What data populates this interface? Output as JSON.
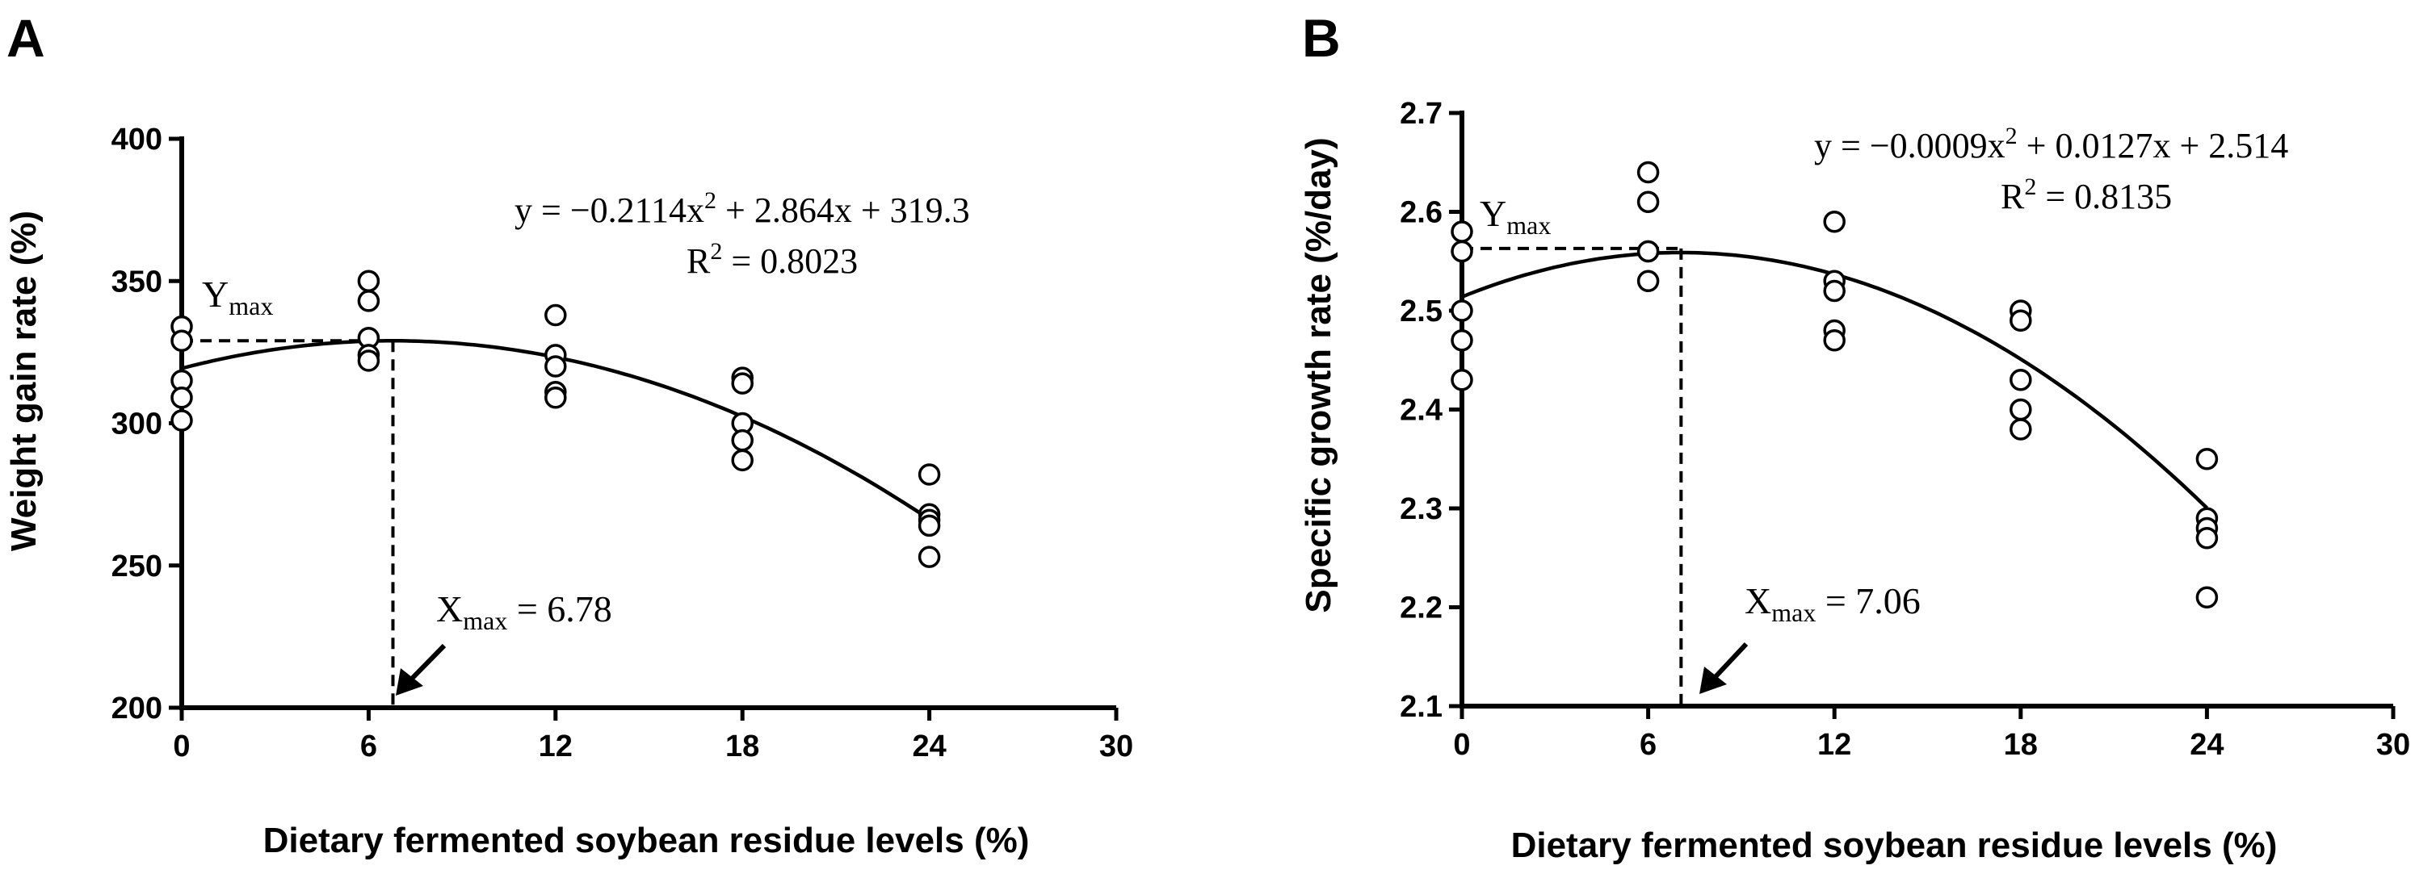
{
  "chart_data": [
    {
      "panel": "A",
      "type": "scatter",
      "xlabel": "Dietary fermented soybean residue levels (%)",
      "ylabel": "Weight gain rate (%)",
      "xlim": [
        0,
        30
      ],
      "ylim": [
        200,
        400
      ],
      "xticks": [
        "0",
        "6",
        "12",
        "18",
        "24",
        "30"
      ],
      "yticks": [
        "200",
        "250",
        "300",
        "350",
        "400"
      ],
      "points": [
        {
          "x": 0,
          "y": 334
        },
        {
          "x": 0,
          "y": 329
        },
        {
          "x": 0,
          "y": 315
        },
        {
          "x": 0,
          "y": 309
        },
        {
          "x": 0,
          "y": 301
        },
        {
          "x": 6,
          "y": 350
        },
        {
          "x": 6,
          "y": 343
        },
        {
          "x": 6,
          "y": 330
        },
        {
          "x": 6,
          "y": 324
        },
        {
          "x": 6,
          "y": 322
        },
        {
          "x": 12,
          "y": 338
        },
        {
          "x": 12,
          "y": 324
        },
        {
          "x": 12,
          "y": 320
        },
        {
          "x": 12,
          "y": 311
        },
        {
          "x": 12,
          "y": 309
        },
        {
          "x": 18,
          "y": 316
        },
        {
          "x": 18,
          "y": 314
        },
        {
          "x": 18,
          "y": 300
        },
        {
          "x": 18,
          "y": 294
        },
        {
          "x": 18,
          "y": 287
        },
        {
          "x": 24,
          "y": 282
        },
        {
          "x": 24,
          "y": 268
        },
        {
          "x": 24,
          "y": 266
        },
        {
          "x": 24,
          "y": 264
        },
        {
          "x": 24,
          "y": 253
        }
      ],
      "fit": {
        "a": -0.2114,
        "b": 2.864,
        "c": 319.3,
        "x_range": [
          0,
          24
        ]
      },
      "equation_lhs": "y = −0.2114x",
      "equation_sup": "2",
      "equation_rhs": " + 2.864x + 319.3",
      "r2_lhs": "R",
      "r2_sup": "2",
      "r2_rhs": " = 0.8023",
      "ymax_label": "Y",
      "ymax_sub": "max",
      "ymax_value": 329,
      "xmax_label": "X",
      "xmax_sub": "max",
      "xmax_value_text": " = 6.78",
      "xmax_value": 6.78
    },
    {
      "panel": "B",
      "type": "scatter",
      "xlabel": "Dietary fermented soybean residue levels (%)",
      "ylabel": "Specific growth rate (%/day)",
      "xlim": [
        0,
        30
      ],
      "ylim": [
        2.1,
        2.7
      ],
      "xticks": [
        "0",
        "6",
        "12",
        "18",
        "24",
        "30"
      ],
      "yticks": [
        "2.1",
        "2.2",
        "2.3",
        "2.4",
        "2.5",
        "2.6",
        "2.7"
      ],
      "points": [
        {
          "x": 0,
          "y": 2.58
        },
        {
          "x": 0,
          "y": 2.56
        },
        {
          "x": 0,
          "y": 2.5
        },
        {
          "x": 0,
          "y": 2.47
        },
        {
          "x": 0,
          "y": 2.43
        },
        {
          "x": 6,
          "y": 2.64
        },
        {
          "x": 6,
          "y": 2.61
        },
        {
          "x": 6,
          "y": 2.56
        },
        {
          "x": 6,
          "y": 2.56
        },
        {
          "x": 6,
          "y": 2.53
        },
        {
          "x": 12,
          "y": 2.59
        },
        {
          "x": 12,
          "y": 2.53
        },
        {
          "x": 12,
          "y": 2.52
        },
        {
          "x": 12,
          "y": 2.48
        },
        {
          "x": 12,
          "y": 2.47
        },
        {
          "x": 18,
          "y": 2.5
        },
        {
          "x": 18,
          "y": 2.49
        },
        {
          "x": 18,
          "y": 2.43
        },
        {
          "x": 18,
          "y": 2.4
        },
        {
          "x": 18,
          "y": 2.38
        },
        {
          "x": 24,
          "y": 2.35
        },
        {
          "x": 24,
          "y": 2.29
        },
        {
          "x": 24,
          "y": 2.28
        },
        {
          "x": 24,
          "y": 2.27
        },
        {
          "x": 24,
          "y": 2.21
        }
      ],
      "fit": {
        "a": -0.0009,
        "b": 0.0127,
        "c": 2.514,
        "x_range": [
          0,
          24
        ]
      },
      "equation_lhs": "y = −0.0009x",
      "equation_sup": "2",
      "equation_rhs": " + 0.0127x + 2.514",
      "r2_lhs": "R",
      "r2_sup": "2",
      "r2_rhs": " = 0.8135",
      "ymax_label": "Y",
      "ymax_sub": "max",
      "ymax_value": 2.563,
      "xmax_label": "X",
      "xmax_sub": "max",
      "xmax_value_text": " = 7.06",
      "xmax_value": 7.06
    }
  ]
}
